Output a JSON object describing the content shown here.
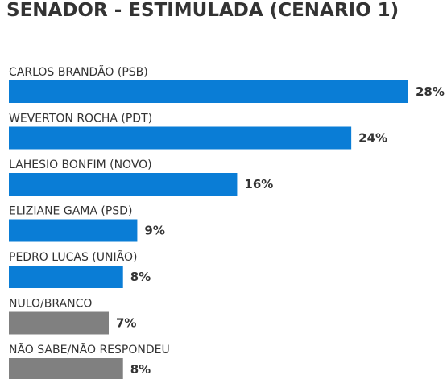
{
  "chart_data": {
    "type": "bar",
    "orientation": "horizontal",
    "title": "SENADOR - ESTIMULADA (CENARIO 1)",
    "categories": [
      "CARLOS BRANDÃO (PSB)",
      "WEVERTON ROCHA (PDT)",
      "LAHESIO BONFIM (NOVO)",
      "ELIZIANE GAMA (PSD)",
      "PEDRO LUCAS (UNIÃO)",
      "NULO/BRANCO",
      "NÃO SABE/NÃO RESPONDEU"
    ],
    "values": [
      28,
      24,
      16,
      9,
      8,
      7,
      8
    ],
    "value_labels": [
      "28%",
      "24%",
      "16%",
      "9%",
      "8%",
      "7%",
      "8%"
    ],
    "bar_colors": [
      "#0a7dd6",
      "#0a7dd6",
      "#0a7dd6",
      "#0a7dd6",
      "#0a7dd6",
      "#808080",
      "#808080"
    ],
    "xlim": [
      0,
      28
    ],
    "grid": false,
    "legend": "none"
  }
}
